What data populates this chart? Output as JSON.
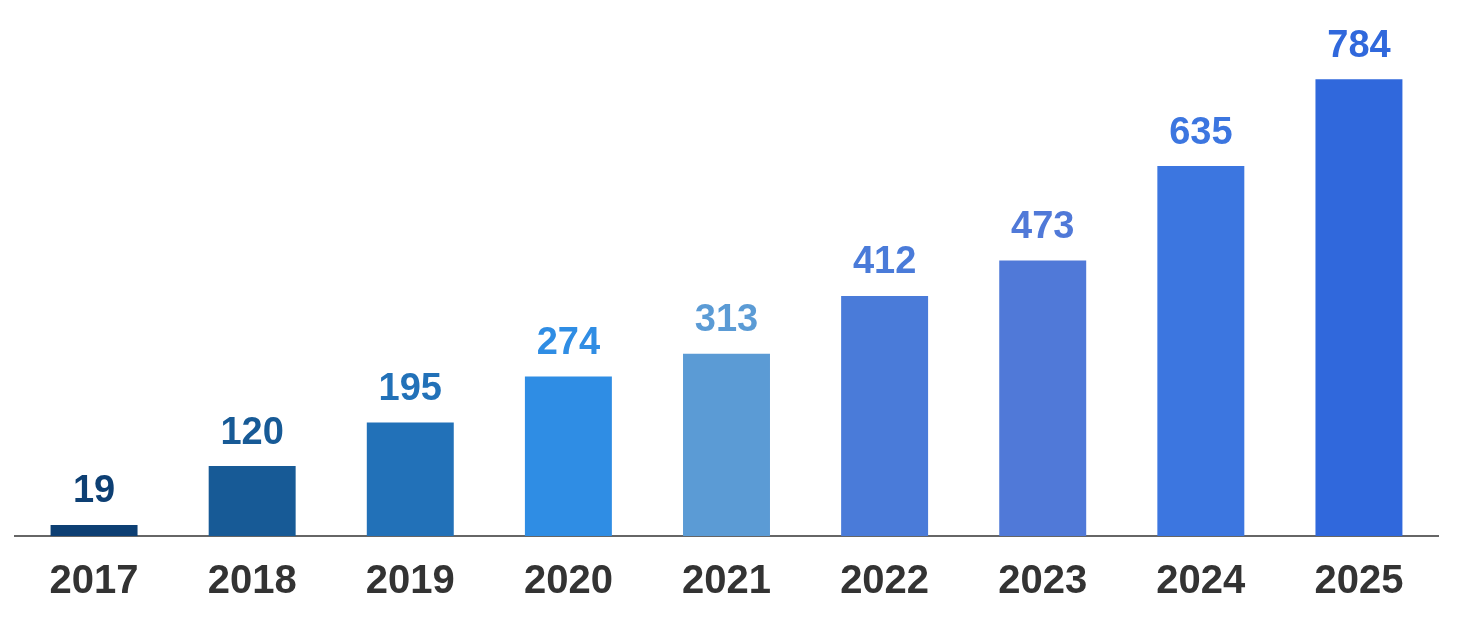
{
  "chart_data": {
    "type": "bar",
    "categories": [
      "2017",
      "2018",
      "2019",
      "2020",
      "2021",
      "2022",
      "2023",
      "2024",
      "2025"
    ],
    "values": [
      19,
      120,
      195,
      274,
      313,
      412,
      473,
      635,
      784
    ],
    "colors": [
      "#0d3f73",
      "#175a96",
      "#2271b8",
      "#2f8de4",
      "#5b9bd5",
      "#4a7bd9",
      "#5079d8",
      "#3c76e0",
      "#3068dc"
    ],
    "data_labels": true,
    "grid": false,
    "legend": false
  }
}
